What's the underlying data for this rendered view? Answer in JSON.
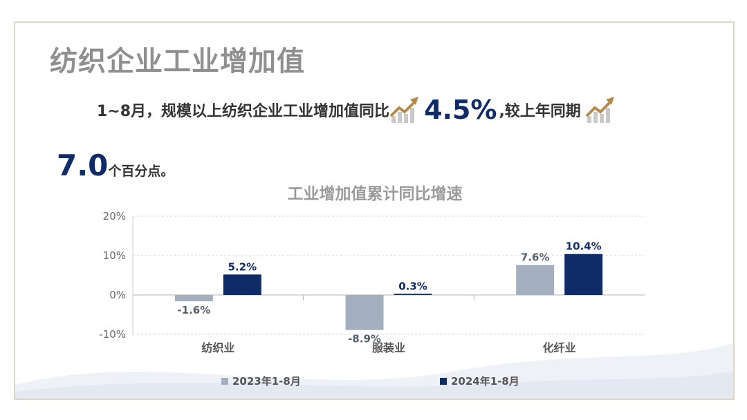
{
  "slide": {
    "title": "纺织企业工业增加值",
    "headline_part1": "1~8月，规模以上纺织企业工业增加值同比",
    "headline_value": "4.5%",
    "headline_part2": ",较上年同期",
    "headline2_value": "7.0",
    "headline2_suffix": "个百分点。",
    "trend_icon": "trend-up-icon"
  },
  "colors": {
    "series_2023": "#a3afbf",
    "series_2024": "#0f2c68",
    "icon_gold": "#b38a4a",
    "title_gray": "#8f8f8f"
  },
  "chart_data": {
    "type": "bar",
    "title": "工业增加值累计同比增速",
    "categories": [
      "纺织业",
      "服装业",
      "化纤业"
    ],
    "series": [
      {
        "name": "2023年1-8月",
        "values": [
          -1.6,
          -8.9,
          7.6
        ],
        "labels": [
          "-1.6%",
          "-8.9%",
          "7.6%"
        ]
      },
      {
        "name": "2024年1-8月",
        "values": [
          5.2,
          0.3,
          10.4
        ],
        "labels": [
          "5.2%",
          "0.3%",
          "10.4%"
        ]
      }
    ],
    "ylim": [
      -10,
      20
    ],
    "yticks": [
      -10,
      0,
      10,
      20
    ],
    "ytick_labels": [
      "-10%",
      "0%",
      "10%",
      "20%"
    ],
    "grid": "dashed horizontal",
    "legend": "bottom"
  }
}
